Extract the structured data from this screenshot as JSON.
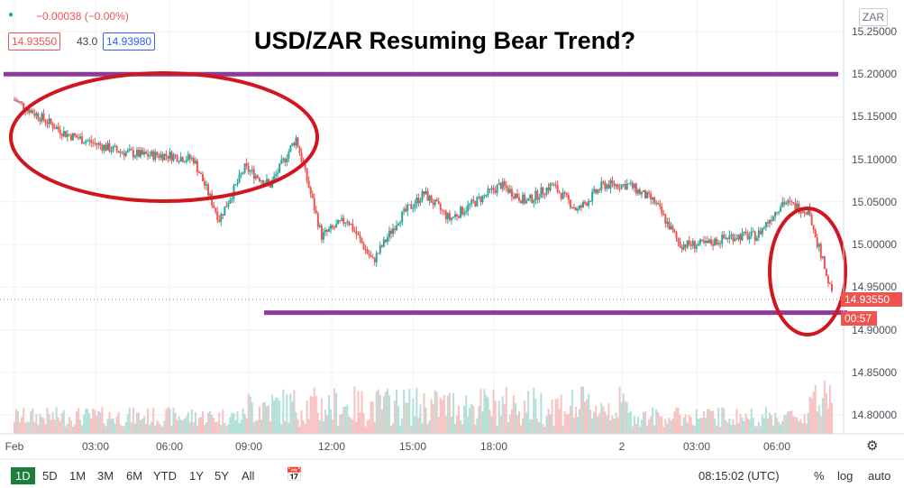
{
  "title": "USD/ZAR Resuming Bear Trend?",
  "header": {
    "change": "−0.00038 (−0.00%)",
    "bid": "14.93550",
    "spread": "43.0",
    "ask": "14.93980",
    "currency": "ZAR"
  },
  "price_axis": {
    "ticks": [
      "15.25000",
      "15.20000",
      "15.15000",
      "15.10000",
      "15.05000",
      "15.00000",
      "14.95000",
      "14.90000",
      "14.85000",
      "14.80000"
    ],
    "current_price": "14.93550",
    "countdown": "00:57"
  },
  "time_axis": {
    "ticks": [
      "Feb",
      "03:00",
      "06:00",
      "09:00",
      "12:00",
      "15:00",
      "18:00",
      "2",
      "03:00",
      "06:00"
    ]
  },
  "toolbar": {
    "ranges": [
      "1D",
      "5D",
      "1M",
      "3M",
      "6M",
      "YTD",
      "1Y",
      "5Y",
      "All"
    ],
    "active_range": "1D",
    "clock": "08:15:02 (UTC)",
    "percent": "%",
    "log": "log",
    "auto": "auto"
  },
  "colors": {
    "up": "#26a69a",
    "down": "#ef5350",
    "annotation_line": "#8e3a9c",
    "annotation_circle": "#d0161f",
    "price_tag": "#e8454d"
  },
  "chart_data": {
    "type": "line",
    "title": "USD/ZAR Resuming Bear Trend?",
    "xlabel": "",
    "ylabel": "",
    "ylim": [
      14.77,
      15.26
    ],
    "x": [
      "Feb 00:00",
      "Feb 01:00",
      "Feb 02:00",
      "Feb 03:00",
      "Feb 04:00",
      "Feb 05:00",
      "Feb 06:00",
      "Feb 07:00",
      "Feb 08:00",
      "Feb 09:00",
      "Feb 10:00",
      "Feb 11:00",
      "Feb 12:00",
      "Feb 13:00",
      "Feb 14:00",
      "Feb 15:00",
      "Feb 16:00",
      "Feb 17:00",
      "Feb 18:00",
      "Feb 19:00",
      "Feb 20:00",
      "Feb 21:00",
      "Feb 22:00",
      "Feb 23:00",
      "2 00:00",
      "2 01:00",
      "2 02:00",
      "2 03:00",
      "2 04:00",
      "2 05:00",
      "2 06:00",
      "2 07:00",
      "2 08:00"
    ],
    "series": [
      {
        "values": [
          15.17,
          15.15,
          15.13,
          15.12,
          15.11,
          15.105,
          15.105,
          15.1,
          15.03,
          15.09,
          15.07,
          15.125,
          15.01,
          15.03,
          14.98,
          15.03,
          15.06,
          15.03,
          15.05,
          15.07,
          15.05,
          15.07,
          15.04,
          15.07,
          15.07,
          15.05,
          15.0,
          15.0,
          15.01,
          15.01,
          15.05,
          15.04,
          14.9355
        ]
      }
    ],
    "annotations": {
      "horizontal_lines": [
        15.2,
        14.92
      ],
      "circles": [
        "Feb 00:00–11:00 consolidation 15.09–15.18",
        "2 06:00–08:00 drop 14.94–15.05"
      ]
    },
    "grid": true,
    "legend": "none"
  }
}
